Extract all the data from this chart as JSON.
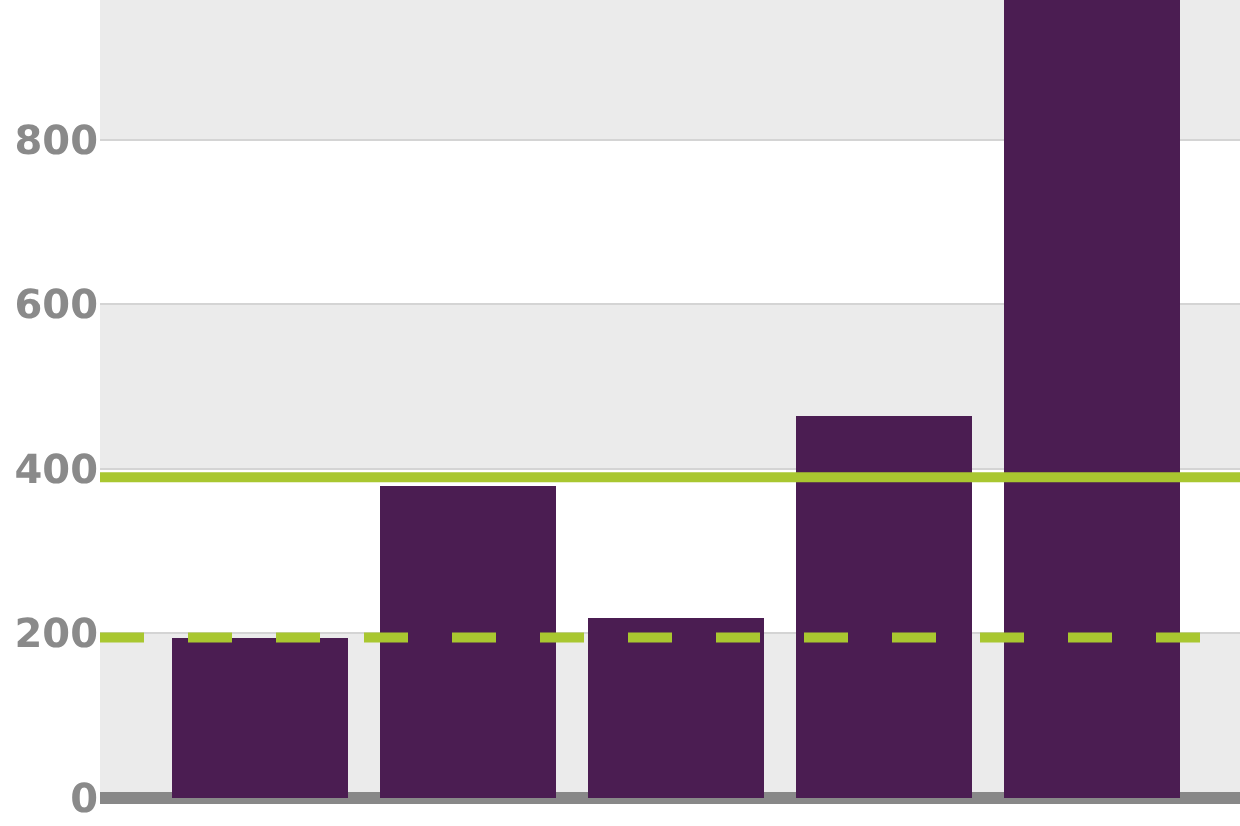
{
  "chart_data": {
    "type": "bar",
    "categories": [
      null,
      null,
      null,
      null,
      null
    ],
    "values": [
      195,
      380,
      220,
      465,
      970
    ],
    "color": "#4b1d52",
    "ylim": [
      0,
      970
    ],
    "yticks": [
      0,
      200,
      400,
      600,
      800
    ],
    "tick_labels": "y",
    "grid": "y",
    "bands": [
      {
        "axis": "y",
        "from": 0,
        "to": 200,
        "color": "#ebebeb"
      },
      {
        "axis": "y",
        "from": 400,
        "to": 600,
        "color": "#ebebeb"
      },
      {
        "axis": "y",
        "from": 800,
        "to": 970,
        "color": "#ebebeb"
      }
    ],
    "ref_lines": [
      {
        "axis": "y",
        "value": 390,
        "color": "#a9c730",
        "line_style": "solid"
      },
      {
        "axis": "y",
        "value": 195,
        "color": "#a9c730",
        "line_style": "dashed"
      }
    ]
  }
}
